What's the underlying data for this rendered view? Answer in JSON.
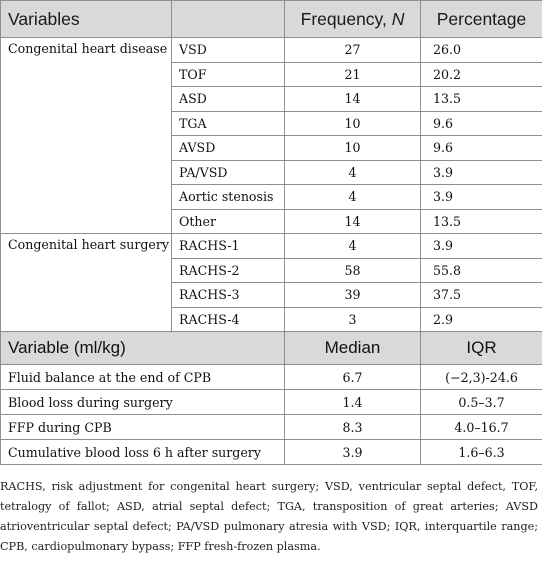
{
  "table1": {
    "headers": [
      "Variables",
      "",
      "Frequency, N",
      "Percentage"
    ],
    "groups": [
      {
        "label": "Congenital heart disease",
        "rows": [
          {
            "name": "VSD",
            "n": "27",
            "pct": "26.0"
          },
          {
            "name": "TOF",
            "n": "21",
            "pct": "20.2"
          },
          {
            "name": "ASD",
            "n": "14",
            "pct": "13.5"
          },
          {
            "name": "TGA",
            "n": "10",
            "pct": "9.6"
          },
          {
            "name": "AVSD",
            "n": "10",
            "pct": "9.6"
          },
          {
            "name": "PA/VSD",
            "n": "4",
            "pct": "3.9"
          },
          {
            "name": "Aortic stenosis",
            "n": "4",
            "pct": "3.9"
          },
          {
            "name": "Other",
            "n": "14",
            "pct": "13.5"
          }
        ]
      },
      {
        "label": "Congenital heart surgery",
        "rows": [
          {
            "name": "RACHS-1",
            "n": "4",
            "pct": "3.9"
          },
          {
            "name": "RACHS-2",
            "n": "58",
            "pct": "55.8"
          },
          {
            "name": "RACHS-3",
            "n": "39",
            "pct": "37.5"
          },
          {
            "name": "RACHS-4",
            "n": "3",
            "pct": "2.9"
          }
        ]
      }
    ]
  },
  "table2": {
    "headers": [
      "Variable (ml/kg)",
      "Median",
      "IQR"
    ],
    "rows": [
      {
        "name": "Fluid balance at the end of CPB",
        "median": "6.7",
        "iqr": "(−2,3)-24.6"
      },
      {
        "name": "Blood loss during surgery",
        "median": "1.4",
        "iqr": "0.5–3.7"
      },
      {
        "name": "FFP during CPB",
        "median": "8.3",
        "iqr": "4.0–16.7"
      },
      {
        "name": "Cumulative blood loss 6 h after surgery",
        "median": "3.9",
        "iqr": "1.6–6.3"
      }
    ]
  },
  "footnote": "RACHS, risk adjustment for congenital heart surgery; VSD, ventricular septal defect, TOF, tetralogy of fallot; ASD, atrial septal defect; TGA, transposition of great arteries; AVSD atrioventricular septal defect; PA/VSD pulmonary atresia with VSD; IQR, interquartile range; CPB, cardiopulmonary bypass; FFP fresh-frozen plasma."
}
